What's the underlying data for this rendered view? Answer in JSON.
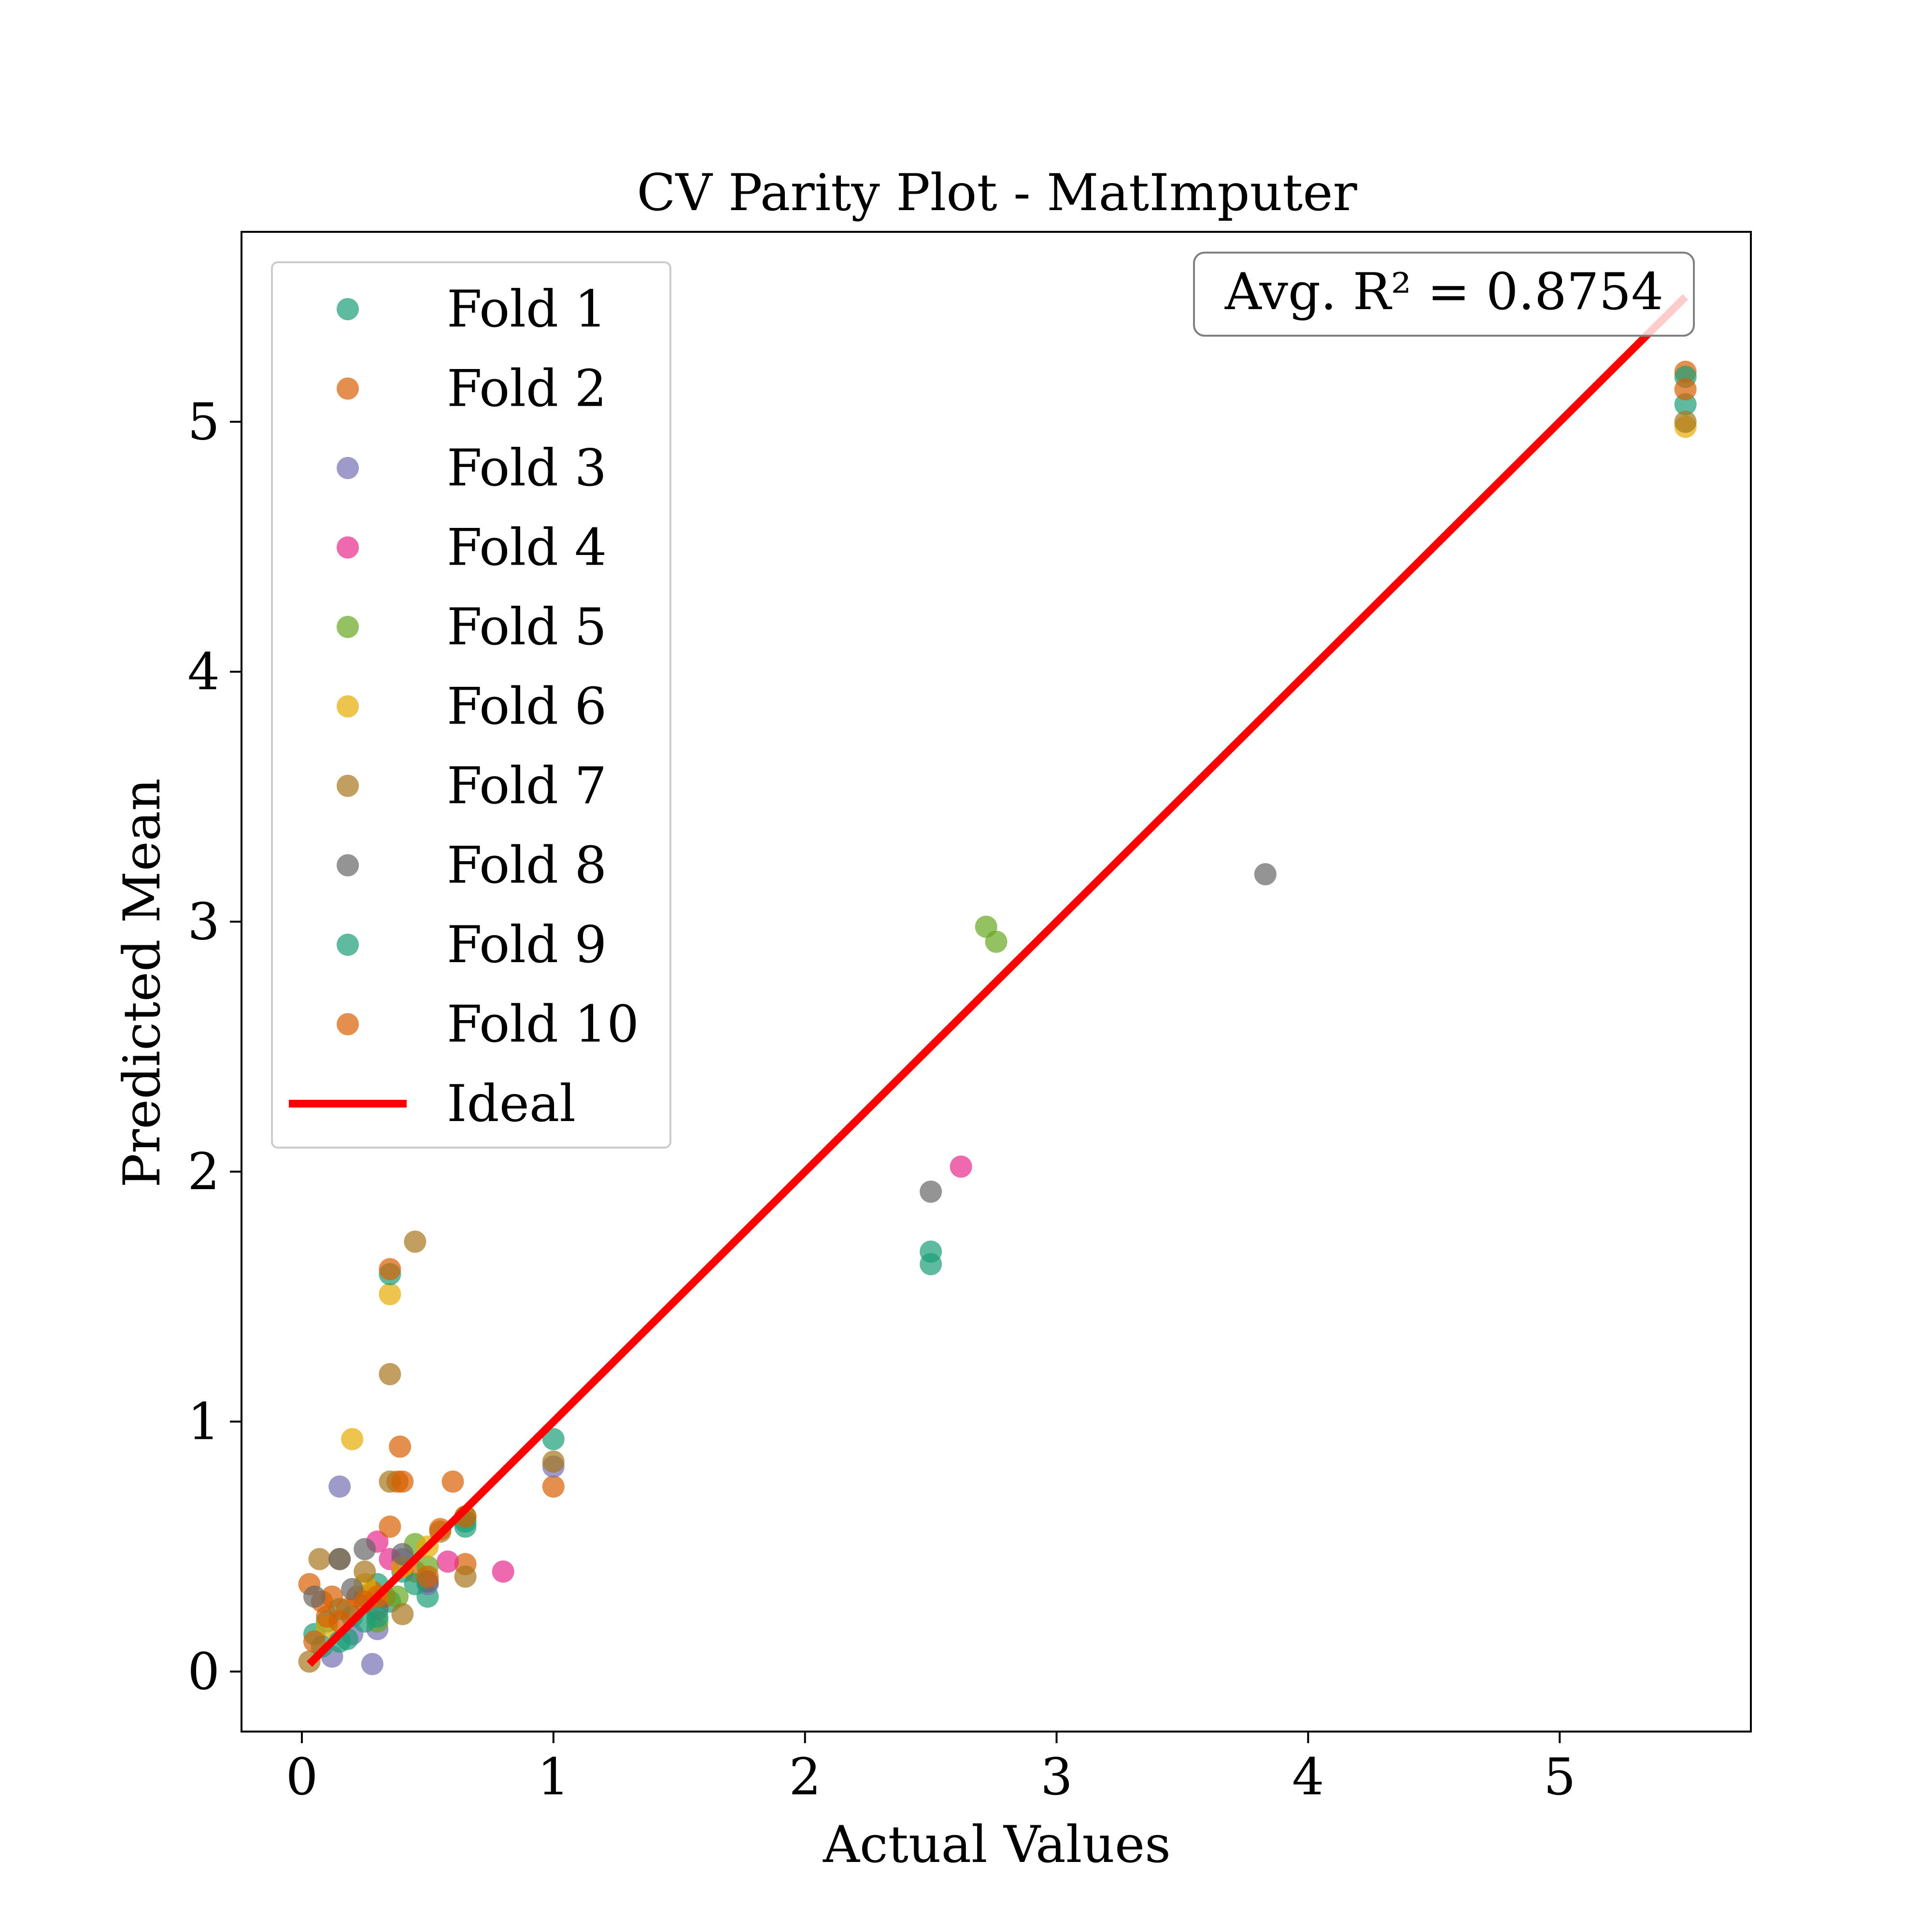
{
  "chart_data": {
    "type": "scatter",
    "title": "CV Parity Plot - MatImputer",
    "xlabel": "Actual Values",
    "ylabel": "Predicted Mean",
    "xlim": [
      -0.24,
      5.76
    ],
    "ylim": [
      -0.24,
      5.76
    ],
    "xticks": [
      0,
      1,
      2,
      3,
      4,
      5
    ],
    "yticks": [
      0,
      1,
      2,
      3,
      4,
      5
    ],
    "grid": false,
    "legend_position": "upper-left",
    "annotation": "Avg. R² = 0.8754",
    "ideal_line": {
      "name": "Ideal",
      "color": "#ff0000",
      "x": [
        0.03,
        5.5
      ],
      "y": [
        0.03,
        5.5
      ]
    },
    "series": [
      {
        "name": "Fold 1",
        "color": "#1b9e77",
        "points": [
          [
            0.05,
            0.15
          ],
          [
            0.1,
            0.2
          ],
          [
            0.15,
            0.25
          ],
          [
            0.2,
            0.22
          ],
          [
            0.25,
            0.3
          ],
          [
            0.3,
            0.35
          ],
          [
            0.35,
            0.28
          ],
          [
            0.4,
            0.4
          ],
          [
            0.5,
            0.3
          ],
          [
            0.65,
            0.58
          ],
          [
            1.0,
            0.93
          ],
          [
            2.5,
            1.68
          ],
          [
            2.5,
            1.63
          ],
          [
            5.5,
            5.07
          ]
        ]
      },
      {
        "name": "Fold 2",
        "color": "#d95f02",
        "points": [
          [
            0.03,
            0.35
          ],
          [
            0.08,
            0.28
          ],
          [
            0.12,
            0.3
          ],
          [
            0.18,
            0.25
          ],
          [
            0.22,
            0.3
          ],
          [
            0.28,
            0.32
          ],
          [
            0.33,
            0.3
          ],
          [
            0.38,
            0.76
          ],
          [
            0.4,
            0.42
          ],
          [
            0.45,
            0.4
          ],
          [
            0.6,
            0.76
          ],
          [
            0.65,
            0.43
          ],
          [
            1.0,
            0.74
          ],
          [
            5.5,
            5.2
          ]
        ]
      },
      {
        "name": "Fold 3",
        "color": "#7570b3",
        "points": [
          [
            0.12,
            0.06
          ],
          [
            0.15,
            0.74
          ],
          [
            0.2,
            0.15
          ],
          [
            0.28,
            0.03
          ],
          [
            0.3,
            0.17
          ],
          [
            0.4,
            0.45
          ],
          [
            0.5,
            0.35
          ],
          [
            1.0,
            0.82
          ]
        ]
      },
      {
        "name": "Fold 4",
        "color": "#e7298a",
        "points": [
          [
            0.3,
            0.52
          ],
          [
            0.35,
            0.45
          ],
          [
            0.58,
            0.44
          ],
          [
            0.8,
            0.4
          ],
          [
            2.62,
            2.02
          ]
        ]
      },
      {
        "name": "Fold 5",
        "color": "#66a61e",
        "points": [
          [
            0.3,
            0.2
          ],
          [
            0.38,
            0.3
          ],
          [
            0.45,
            0.51
          ],
          [
            0.5,
            0.42
          ],
          [
            0.65,
            0.62
          ],
          [
            2.72,
            2.98
          ],
          [
            2.76,
            2.92
          ]
        ]
      },
      {
        "name": "Fold 6",
        "color": "#e6ab02",
        "points": [
          [
            0.1,
            0.18
          ],
          [
            0.2,
            0.93
          ],
          [
            0.25,
            0.35
          ],
          [
            0.3,
            0.3
          ],
          [
            0.35,
            1.51
          ],
          [
            0.4,
            0.42
          ],
          [
            0.5,
            0.5
          ],
          [
            5.5,
            4.98
          ]
        ]
      },
      {
        "name": "Fold 7",
        "color": "#a6761d",
        "points": [
          [
            0.03,
            0.04
          ],
          [
            0.07,
            0.45
          ],
          [
            0.15,
            0.45
          ],
          [
            0.25,
            0.4
          ],
          [
            0.35,
            1.19
          ],
          [
            0.35,
            0.76
          ],
          [
            0.4,
            0.23
          ],
          [
            0.45,
            1.72
          ],
          [
            0.55,
            0.56
          ],
          [
            0.65,
            0.38
          ],
          [
            1.0,
            0.84
          ],
          [
            5.5,
            5.0
          ]
        ]
      },
      {
        "name": "Fold 8",
        "color": "#666666",
        "points": [
          [
            0.05,
            0.3
          ],
          [
            0.15,
            0.45
          ],
          [
            0.2,
            0.33
          ],
          [
            0.25,
            0.49
          ],
          [
            0.3,
            0.25
          ],
          [
            0.4,
            0.47
          ],
          [
            0.5,
            0.36
          ],
          [
            2.5,
            1.92
          ],
          [
            3.83,
            3.19
          ]
        ]
      },
      {
        "name": "Fold 9",
        "color": "#1b9e77",
        "points": [
          [
            0.08,
            0.1
          ],
          [
            0.15,
            0.12
          ],
          [
            0.18,
            0.13
          ],
          [
            0.25,
            0.2
          ],
          [
            0.3,
            0.22
          ],
          [
            0.35,
            1.59
          ],
          [
            0.45,
            0.35
          ],
          [
            0.65,
            0.6
          ],
          [
            5.5,
            5.18
          ]
        ]
      },
      {
        "name": "Fold 10",
        "color": "#d95f02",
        "points": [
          [
            0.05,
            0.12
          ],
          [
            0.1,
            0.22
          ],
          [
            0.15,
            0.2
          ],
          [
            0.25,
            0.28
          ],
          [
            0.3,
            0.3
          ],
          [
            0.35,
            1.61
          ],
          [
            0.35,
            0.58
          ],
          [
            0.39,
            0.9
          ],
          [
            0.4,
            0.76
          ],
          [
            0.5,
            0.38
          ],
          [
            0.55,
            0.57
          ],
          [
            0.65,
            0.62
          ],
          [
            5.5,
            5.13
          ]
        ]
      }
    ]
  }
}
